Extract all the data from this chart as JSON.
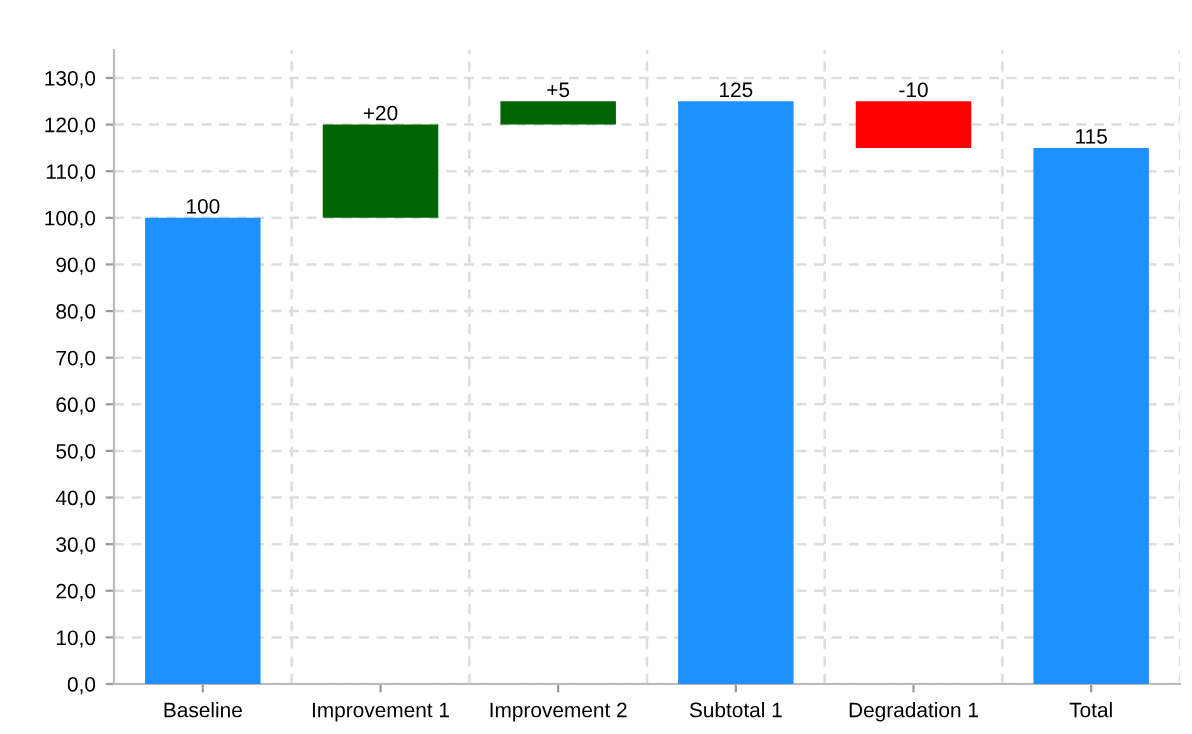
{
  "chart_data": {
    "type": "bar",
    "categories": [
      "Baseline",
      "Improvement 1",
      "Improvement 2",
      "Subtotal 1",
      "Degradation 1",
      "Total"
    ],
    "values": [
      100,
      20,
      5,
      125,
      -10,
      115
    ],
    "base": [
      0,
      100,
      120,
      0,
      125,
      0
    ],
    "colors": [
      "#1e90ff",
      "#006400",
      "#006400",
      "#1e90ff",
      "#ff0000",
      "#1e90ff"
    ],
    "value_labels": [
      "100",
      "+20",
      "+5",
      "125",
      "-10",
      "115"
    ],
    "ylim": [
      0,
      136
    ],
    "yticks": [
      {
        "value": 0,
        "label": "0,0"
      },
      {
        "value": 10,
        "label": "10,0"
      },
      {
        "value": 20,
        "label": "20,0"
      },
      {
        "value": 30,
        "label": "30,0"
      },
      {
        "value": 40,
        "label": "40,0"
      },
      {
        "value": 50,
        "label": "50,0"
      },
      {
        "value": 60,
        "label": "60,0"
      },
      {
        "value": 70,
        "label": "70,0"
      },
      {
        "value": 80,
        "label": "80,0"
      },
      {
        "value": 90,
        "label": "90,0"
      },
      {
        "value": 100,
        "label": "100,0"
      },
      {
        "value": 110,
        "label": "110,0"
      },
      {
        "value": 120,
        "label": "120,0"
      },
      {
        "value": 130,
        "label": "130,0"
      }
    ],
    "grid": true
  }
}
